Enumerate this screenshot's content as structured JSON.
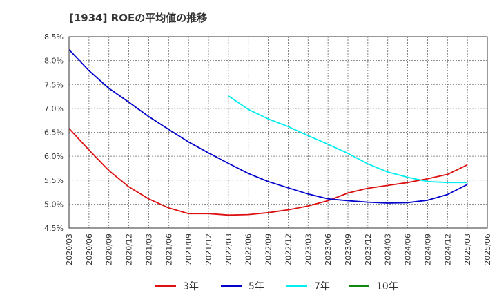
{
  "chart_data": {
    "type": "line",
    "title": "[1934]  ROEの平均値の推移",
    "xlabel": "",
    "ylabel": "",
    "ylim": [
      4.5,
      8.5
    ],
    "yticks": [
      4.5,
      5.0,
      5.5,
      6.0,
      6.5,
      7.0,
      7.5,
      8.0,
      8.5
    ],
    "ytick_labels": [
      "4.5%",
      "5.0%",
      "5.5%",
      "6.0%",
      "6.5%",
      "7.0%",
      "7.5%",
      "8.0%",
      "8.5%"
    ],
    "x_ticks": [
      "2020/03",
      "2020/06",
      "2020/09",
      "2020/12",
      "2021/03",
      "2021/06",
      "2021/09",
      "2021/12",
      "2022/03",
      "2022/06",
      "2022/09",
      "2022/12",
      "2023/03",
      "2023/06",
      "2023/09",
      "2023/12",
      "2024/03",
      "2024/06",
      "2024/09",
      "2024/12",
      "2025/03",
      "2025/06"
    ],
    "grid": true,
    "legend_position": "bottom",
    "series": [
      {
        "name": "3年",
        "color": "#dd1111",
        "start_index": 0,
        "values": [
          6.58,
          6.13,
          5.7,
          5.36,
          5.11,
          4.92,
          4.8,
          4.8,
          4.77,
          4.78,
          4.82,
          4.88,
          4.96,
          5.07,
          5.23,
          5.33,
          5.39,
          5.45,
          5.53,
          5.62,
          5.82
        ]
      },
      {
        "name": "5年",
        "color": "#0000cc",
        "start_index": 0,
        "values": [
          8.23,
          7.79,
          7.42,
          7.13,
          6.83,
          6.56,
          6.3,
          6.07,
          5.85,
          5.64,
          5.47,
          5.34,
          5.21,
          5.11,
          5.07,
          5.04,
          5.02,
          5.03,
          5.08,
          5.2,
          5.41
        ]
      },
      {
        "name": "7年",
        "color": "#00eeee",
        "start_index": 8,
        "values": [
          7.26,
          6.98,
          6.78,
          6.62,
          6.43,
          6.25,
          6.06,
          5.84,
          5.67,
          5.56,
          5.47,
          5.45,
          5.45
        ]
      },
      {
        "name": "10年",
        "color": "#118811",
        "start_index": 0,
        "values": []
      }
    ]
  }
}
